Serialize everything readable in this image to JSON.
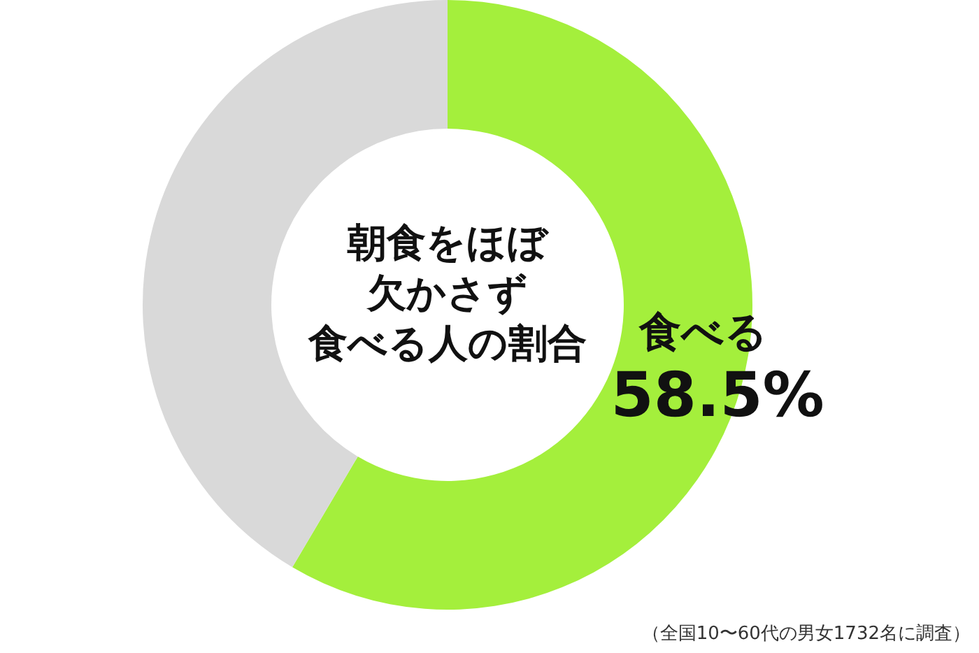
{
  "chart_data": {
    "type": "donut",
    "title": "朝食をほぼ欠かさず",
    "subtitle": "食べる人の割合",
    "categories": [
      "食べる",
      null
    ],
    "values": [
      58.5,
      41.5
    ],
    "colors": [
      "#a4ef3c",
      "#d9d9d9"
    ],
    "value_labels": [
      "58.5%",
      null
    ],
    "annotations": [
      "（全国10〜60代の男女1732名に調査）"
    ]
  }
}
